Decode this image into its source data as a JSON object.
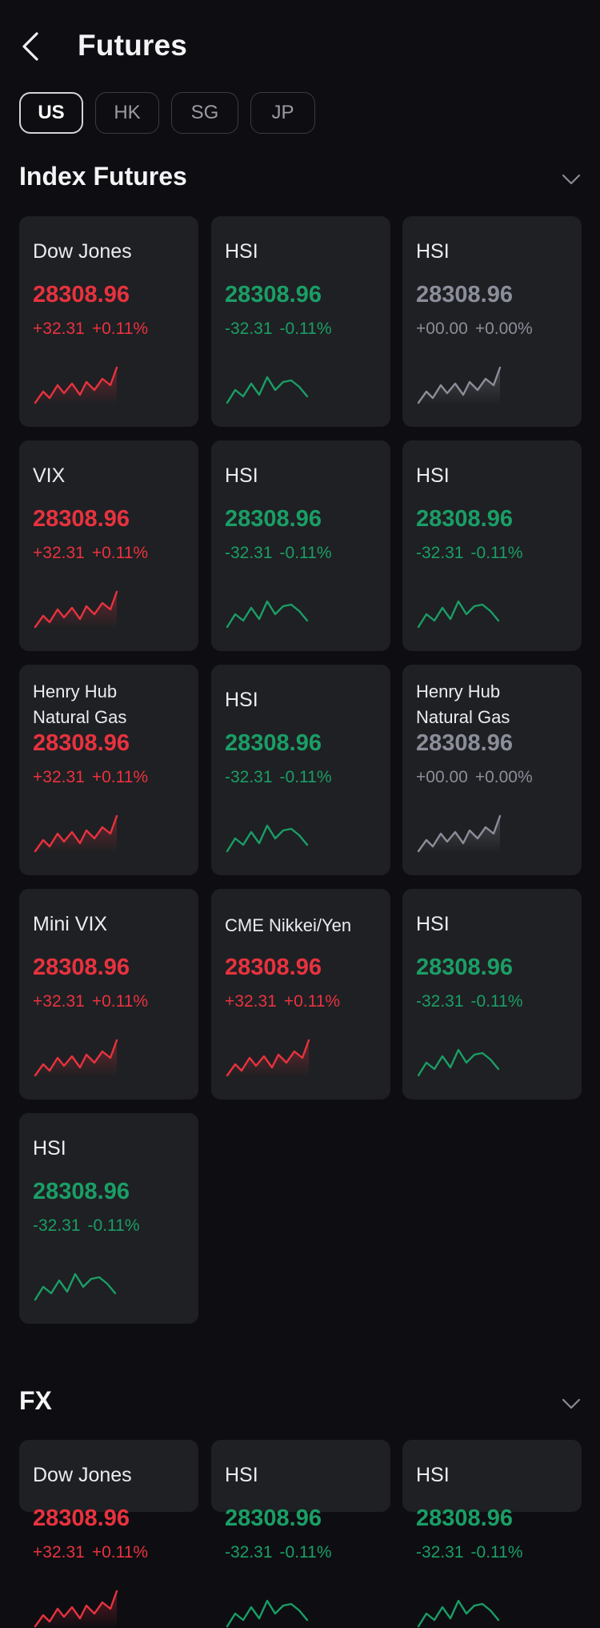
{
  "header": {
    "title": "Futures"
  },
  "tabs": [
    {
      "label": "US",
      "active": true
    },
    {
      "label": "HK",
      "active": false
    },
    {
      "label": "SG",
      "active": false
    },
    {
      "label": "JP",
      "active": false
    }
  ],
  "colors": {
    "up": "#e8323f",
    "down": "#1a9e66",
    "flat": "#8b8e9a",
    "background": "#0e0e12",
    "card": "#1f2023"
  },
  "sections": [
    {
      "title": "Index Futures",
      "cards": [
        {
          "name": "Dow Jones",
          "price": "28308.96",
          "change": "+32.31",
          "pct": "+0.11%",
          "trend": "up"
        },
        {
          "name": "HSI",
          "price": "28308.96",
          "change": "-32.31",
          "pct": "-0.11%",
          "trend": "down"
        },
        {
          "name": "HSI",
          "price": "28308.96",
          "change": "+00.00",
          "pct": "+0.00%",
          "trend": "flat"
        },
        {
          "name": "VIX",
          "price": "28308.96",
          "change": "+32.31",
          "pct": "+0.11%",
          "trend": "up"
        },
        {
          "name": "HSI",
          "price": "28308.96",
          "change": "-32.31",
          "pct": "-0.11%",
          "trend": "down"
        },
        {
          "name": "HSI",
          "price": "28308.96",
          "change": "-32.31",
          "pct": "-0.11%",
          "trend": "down"
        },
        {
          "name": "Henry Hub Natural Gas",
          "price": "28308.96",
          "change": "+32.31",
          "pct": "+0.11%",
          "trend": "up"
        },
        {
          "name": "HSI",
          "price": "28308.96",
          "change": "-32.31",
          "pct": "-0.11%",
          "trend": "down"
        },
        {
          "name": "Henry Hub Natural Gas",
          "price": "28308.96",
          "change": "+00.00",
          "pct": "+0.00%",
          "trend": "flat"
        },
        {
          "name": "Mini VIX",
          "price": "28308.96",
          "change": "+32.31",
          "pct": "+0.11%",
          "trend": "up"
        },
        {
          "name": "CME Nikkei/Yen",
          "price": "28308.96",
          "change": "+32.31",
          "pct": "+0.11%",
          "trend": "up"
        },
        {
          "name": "HSI",
          "price": "28308.96",
          "change": "-32.31",
          "pct": "-0.11%",
          "trend": "down"
        },
        {
          "name": "HSI",
          "price": "28308.96",
          "change": "-32.31",
          "pct": "-0.11%",
          "trend": "down"
        }
      ]
    },
    {
      "title": "FX",
      "cards": [
        {
          "name": "Dow Jones",
          "price": "28308.96",
          "change": "+32.31",
          "pct": "+0.11%",
          "trend": "up"
        },
        {
          "name": "HSI",
          "price": "28308.96",
          "change": "-32.31",
          "pct": "-0.11%",
          "trend": "down"
        },
        {
          "name": "HSI",
          "price": "28308.96",
          "change": "-32.31",
          "pct": "-0.11%",
          "trend": "down"
        }
      ]
    }
  ]
}
